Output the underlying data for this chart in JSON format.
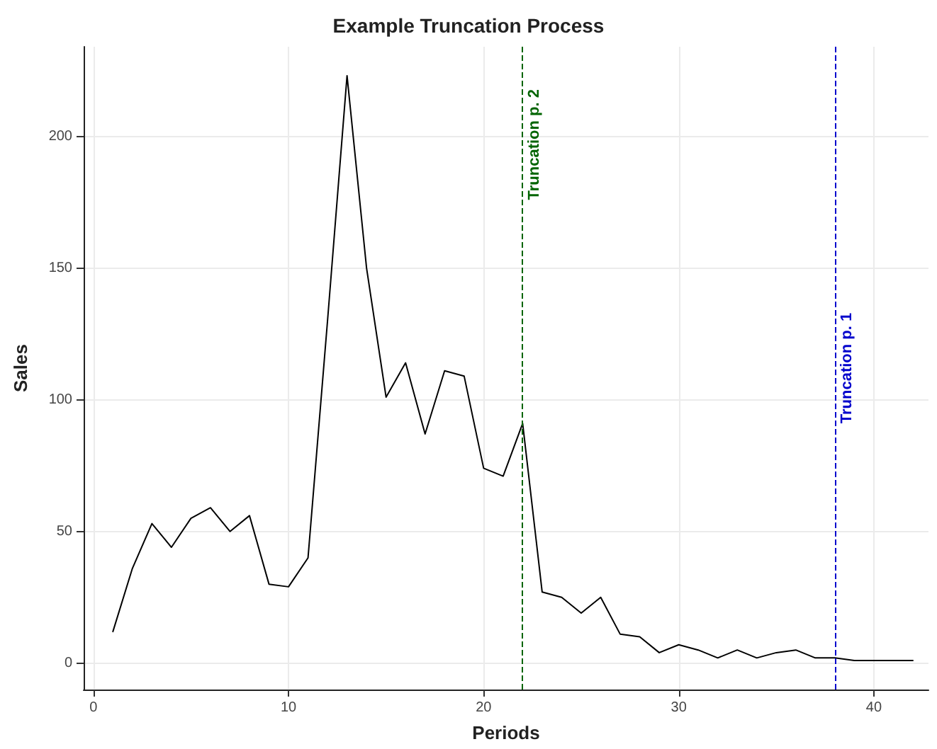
{
  "chart_data": {
    "type": "line",
    "title": "Example Truncation Process",
    "xlabel": "Periods",
    "ylabel": "Sales",
    "x": [
      1,
      2,
      3,
      4,
      5,
      6,
      7,
      8,
      9,
      10,
      11,
      12,
      13,
      14,
      15,
      16,
      17,
      18,
      19,
      20,
      21,
      22,
      23,
      24,
      25,
      26,
      27,
      28,
      29,
      30,
      31,
      32,
      33,
      34,
      35,
      36,
      37,
      38,
      39,
      40,
      41,
      42
    ],
    "series": [
      {
        "color": "#000000",
        "values": [
          12,
          36,
          53,
          44,
          55,
          59,
          50,
          56,
          30,
          29,
          40,
          130,
          223,
          150,
          101,
          114,
          87,
          111,
          109,
          74,
          71,
          91,
          27,
          25,
          19,
          25,
          11,
          10,
          4,
          7,
          5,
          2,
          5,
          2,
          4,
          5,
          2,
          2,
          1,
          1,
          1,
          1
        ]
      }
    ],
    "xlim": [
      -0.5,
      42.8
    ],
    "xticks": [
      0,
      10,
      20,
      30,
      40
    ],
    "ylim": [
      -10,
      234
    ],
    "yticks": [
      0,
      50,
      100,
      150,
      200
    ],
    "grid": true,
    "marker": "none",
    "line_style": "solid",
    "ref_lines": [
      {
        "axis": "x",
        "value": 22,
        "label": "Truncation p. 2",
        "color": "#006400",
        "line_style": "dashed"
      },
      {
        "axis": "x",
        "value": 38,
        "label": "Truncation p. 1",
        "color": "#0000cc",
        "line_style": "dashed"
      }
    ]
  }
}
